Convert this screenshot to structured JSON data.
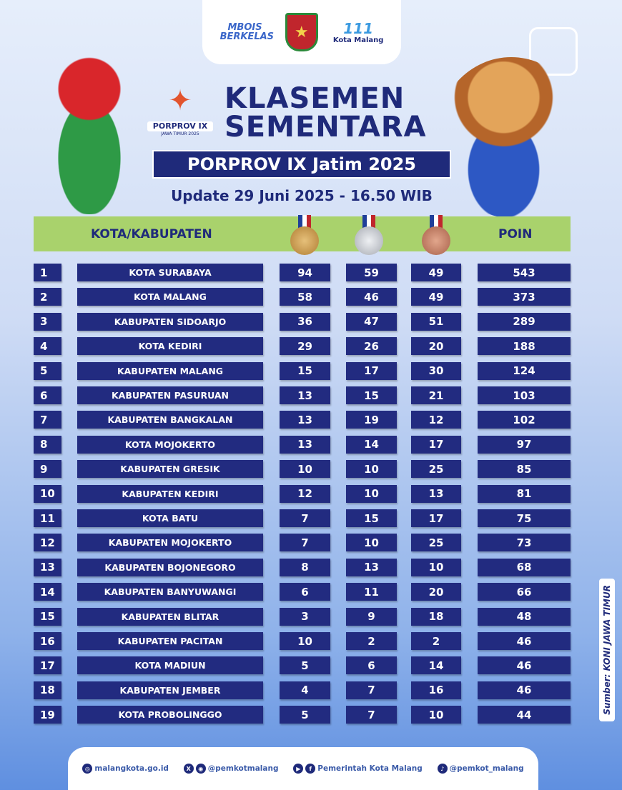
{
  "logos": {
    "mbois": "MBOIS BERKELAS",
    "kota_malang_111": "111",
    "kota_malang": "Kota Malang",
    "porprov_logo": "PORPROV IX",
    "porprov_sub": "JAWA TIMUR 2025"
  },
  "title_line1": "KLASEMEN",
  "title_line2": "SEMENTARA",
  "subtitle": "PORPROV IX Jatim 2025",
  "update": "Update 29 Juni 2025 - 16.50 WIB",
  "header": {
    "region": "KOTA/KABUPATEN",
    "points": "POIN"
  },
  "colors": {
    "navy": "#222b80",
    "header_green": "#a9d26c",
    "gold": "#c8994a",
    "silver": "#b8bcc4",
    "bronze": "#c07a5e"
  },
  "rows": [
    {
      "rank": "1",
      "name": "KOTA SURABAYA",
      "gold": "94",
      "silver": "59",
      "bronze": "49",
      "points": "543"
    },
    {
      "rank": "2",
      "name": "KOTA MALANG",
      "gold": "58",
      "silver": "46",
      "bronze": "49",
      "points": "373"
    },
    {
      "rank": "3",
      "name": "KABUPATEN SIDOARJO",
      "gold": "36",
      "silver": "47",
      "bronze": "51",
      "points": "289"
    },
    {
      "rank": "4",
      "name": "KOTA KEDIRI",
      "gold": "29",
      "silver": "26",
      "bronze": "20",
      "points": "188"
    },
    {
      "rank": "5",
      "name": "KABUPATEN MALANG",
      "gold": "15",
      "silver": "17",
      "bronze": "30",
      "points": "124"
    },
    {
      "rank": "6",
      "name": "KABUPATEN PASURUAN",
      "gold": "13",
      "silver": "15",
      "bronze": "21",
      "points": "103"
    },
    {
      "rank": "7",
      "name": "KABUPATEN BANGKALAN",
      "gold": "13",
      "silver": "19",
      "bronze": "12",
      "points": "102"
    },
    {
      "rank": "8",
      "name": "KOTA MOJOKERTO",
      "gold": "13",
      "silver": "14",
      "bronze": "17",
      "points": "97"
    },
    {
      "rank": "9",
      "name": "KABUPATEN GRESIK",
      "gold": "10",
      "silver": "10",
      "bronze": "25",
      "points": "85"
    },
    {
      "rank": "10",
      "name": "KABUPATEN KEDIRI",
      "gold": "12",
      "silver": "10",
      "bronze": "13",
      "points": "81"
    },
    {
      "rank": "11",
      "name": "KOTA BATU",
      "gold": "7",
      "silver": "15",
      "bronze": "17",
      "points": "75"
    },
    {
      "rank": "12",
      "name": "KABUPATEN MOJOKERTO",
      "gold": "7",
      "silver": "10",
      "bronze": "25",
      "points": "73"
    },
    {
      "rank": "13",
      "name": "KABUPATEN BOJONEGORO",
      "gold": "8",
      "silver": "13",
      "bronze": "10",
      "points": "68"
    },
    {
      "rank": "14",
      "name": "KABUPATEN BANYUWANGI",
      "gold": "6",
      "silver": "11",
      "bronze": "20",
      "points": "66"
    },
    {
      "rank": "15",
      "name": "KABUPATEN BLITAR",
      "gold": "3",
      "silver": "9",
      "bronze": "18",
      "points": "48"
    },
    {
      "rank": "16",
      "name": "KABUPATEN PACITAN",
      "gold": "10",
      "silver": "2",
      "bronze": "2",
      "points": "46"
    },
    {
      "rank": "17",
      "name": "KOTA MADIUN",
      "gold": "5",
      "silver": "6",
      "bronze": "14",
      "points": "46"
    },
    {
      "rank": "18",
      "name": "KABUPATEN JEMBER",
      "gold": "4",
      "silver": "7",
      "bronze": "16",
      "points": "46"
    },
    {
      "rank": "19",
      "name": "KOTA PROBOLINGGO",
      "gold": "5",
      "silver": "7",
      "bronze": "10",
      "points": "44"
    }
  ],
  "source": "Sumber: KONI JAWA TIMUR",
  "footer": {
    "website": "malangkota.go.id",
    "x_instagram": "@pemkotmalang",
    "youtube_facebook": "Pemerintah Kota Malang",
    "tiktok": "@pemkot_malang"
  }
}
